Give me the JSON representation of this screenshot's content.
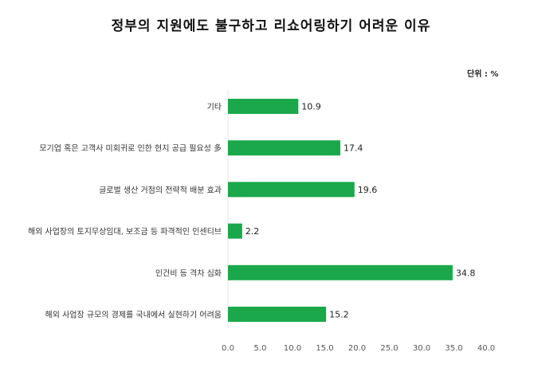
{
  "chart_data": {
    "type": "bar",
    "orientation": "horizontal",
    "title": "정부의 지원에도 불구하고 리쇼어링하기 어려운 이유",
    "unit_label": "단위 : %",
    "categories": [
      "기타",
      "모기업 혹은 고객사 미회귀로 인한 현지 공급 필요성 多",
      "글로벌 생산 거점의 전략적 배분 효과",
      "해외 사업장의 토지무상임대, 보조금 등 파격적인 인센티브",
      "인건비 등 격차 심화",
      "해외 사업장 규모의 경제를 국내에서 실현하기 어려움"
    ],
    "values": [
      10.9,
      17.4,
      19.6,
      2.2,
      34.8,
      15.2
    ],
    "value_labels": [
      "10.9",
      "17.4",
      "19.6",
      "2.2",
      "34.8",
      "15.2"
    ],
    "xlim": [
      0,
      40
    ],
    "x_ticks": [
      "0.0",
      "5.0",
      "10.0",
      "15.0",
      "20.0",
      "25.0",
      "30.0",
      "35.0",
      "40.0"
    ],
    "bar_color": "#1aa84a",
    "grid": false,
    "legend": "none"
  }
}
